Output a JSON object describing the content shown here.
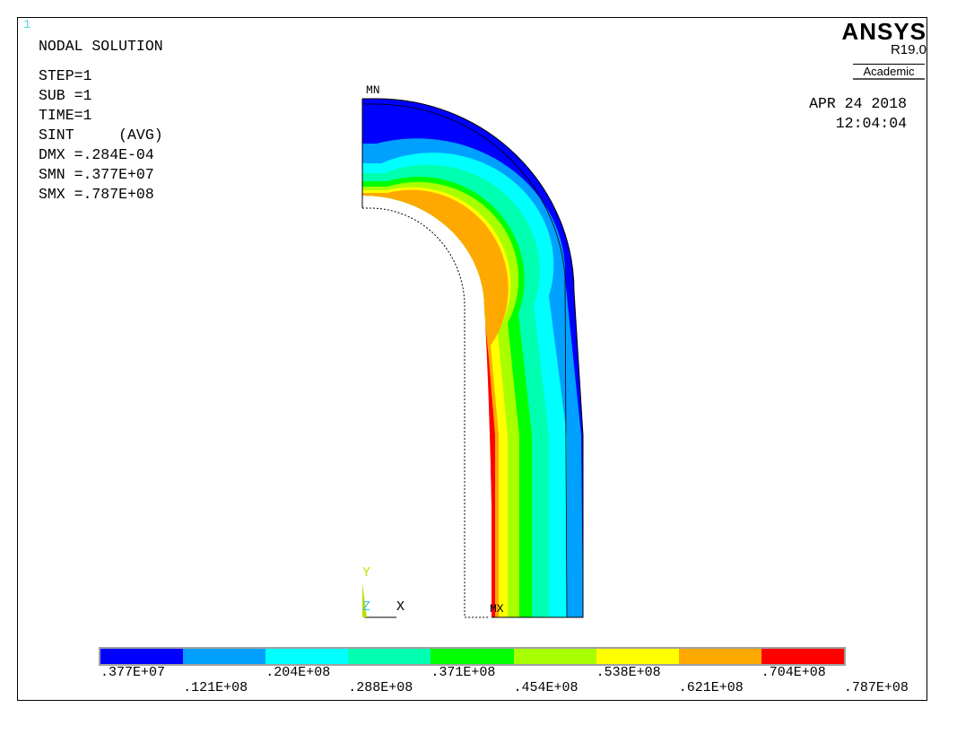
{
  "window": {
    "number": "1"
  },
  "header": {
    "title": "NODAL SOLUTION",
    "step": "STEP=1",
    "sub": "SUB =1",
    "time": "TIME=1",
    "result": "SINT     (AVG)",
    "dmx": "DMX =.284E-04",
    "smn": "SMN =.377E+07",
    "smx": "SMX =.787E+08"
  },
  "logo": {
    "brand": "ANSYS",
    "version": "R19.0",
    "edition": "Academic"
  },
  "datetime": {
    "date": "APR 24 2018",
    "time": "12:04:04"
  },
  "markers": {
    "min": "MN",
    "max": "MX"
  },
  "triad": {
    "y": "Y",
    "z": "Z",
    "x": "X"
  },
  "colors": {
    "bands": [
      "#0000ff",
      "#00a0ff",
      "#00ffff",
      "#00ffb0",
      "#00ff00",
      "#a8ff00",
      "#ffff00",
      "#ffa800",
      "#ff0000"
    ],
    "triad_y": "#b8e000",
    "triad_z": "#40c0ff",
    "window_number": "#55d8e0"
  },
  "legend": {
    "ticks_upper": [
      ".377E+07",
      ".204E+08",
      ".371E+08",
      ".538E+08",
      ".704E+08"
    ],
    "ticks_lower": [
      ".121E+08",
      ".288E+08",
      ".454E+08",
      ".621E+08",
      ".787E+08"
    ]
  }
}
